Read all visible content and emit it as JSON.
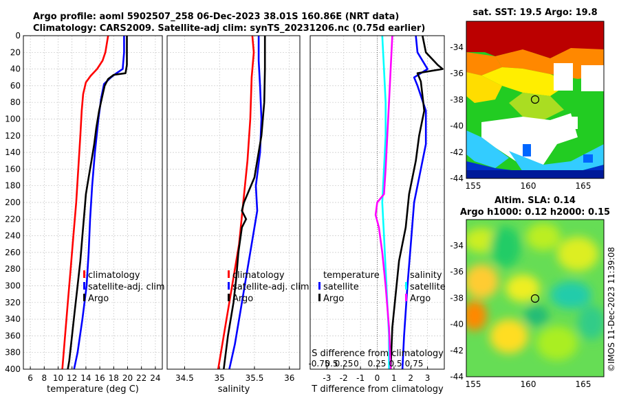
{
  "header": {
    "line1": "Argo profile: aoml 5902507_258 06-Dec-2023 38.01S 160.86E (NRT data)",
    "line2": "Climatology: CARS2009. Satellite-adj clim: synTS_20231206.nc (0.75d earlier)"
  },
  "watermark": "©IMOS 11-Dec-2023 11:39:08",
  "colors": {
    "clim": "#ff0000",
    "sat": "#0000ff",
    "argo": "#000000",
    "sdiff": "#ff00ff",
    "ssat": "#00ffff"
  },
  "chart_data": [
    {
      "type": "line",
      "id": "temperature",
      "xlabel": "temperature (deg C)",
      "ylabel": "",
      "xlim": [
        5,
        25
      ],
      "ylim": [
        400,
        0
      ],
      "xticks": [
        6,
        8,
        10,
        12,
        14,
        16,
        18,
        20,
        22,
        24
      ],
      "yticks": [
        0,
        20,
        40,
        60,
        80,
        100,
        120,
        140,
        160,
        180,
        200,
        220,
        240,
        260,
        280,
        300,
        320,
        340,
        360,
        380,
        400
      ],
      "legend": [
        "climatology",
        "satellite-adj. clim",
        "Argo"
      ],
      "series": [
        {
          "name": "climatology",
          "color": "#ff0000",
          "points": [
            [
              17.2,
              0
            ],
            [
              17.0,
              10
            ],
            [
              16.8,
              20
            ],
            [
              16.4,
              30
            ],
            [
              15.6,
              40
            ],
            [
              14.7,
              48
            ],
            [
              14.0,
              56
            ],
            [
              13.6,
              70
            ],
            [
              13.4,
              90
            ],
            [
              13.2,
              120
            ],
            [
              12.9,
              160
            ],
            [
              12.6,
              200
            ],
            [
              12.2,
              240
            ],
            [
              11.8,
              280
            ],
            [
              11.4,
              320
            ],
            [
              11.0,
              360
            ],
            [
              10.6,
              400
            ]
          ]
        },
        {
          "name": "satellite-adj. clim",
          "color": "#0000ff",
          "points": [
            [
              19.5,
              0
            ],
            [
              19.5,
              20
            ],
            [
              19.3,
              40
            ],
            [
              18.4,
              45
            ],
            [
              17.6,
              50
            ],
            [
              16.6,
              58
            ],
            [
              16.2,
              75
            ],
            [
              15.8,
              100
            ],
            [
              15.3,
              140
            ],
            [
              14.9,
              180
            ],
            [
              14.6,
              220
            ],
            [
              14.4,
              260
            ],
            [
              14.1,
              300
            ],
            [
              13.5,
              340
            ],
            [
              12.8,
              380
            ],
            [
              12.3,
              400
            ]
          ]
        },
        {
          "name": "Argo",
          "color": "#000000",
          "points": [
            [
              19.9,
              0
            ],
            [
              19.9,
              20
            ],
            [
              19.9,
              35
            ],
            [
              19.7,
              45
            ],
            [
              18.0,
              47
            ],
            [
              17.2,
              52
            ],
            [
              16.7,
              60
            ],
            [
              16.3,
              75
            ],
            [
              15.9,
              90
            ],
            [
              15.5,
              110
            ],
            [
              15.2,
              130
            ],
            [
              14.8,
              150
            ],
            [
              14.4,
              170
            ],
            [
              14.0,
              190
            ],
            [
              13.8,
              210
            ],
            [
              13.5,
              240
            ],
            [
              13.2,
              270
            ],
            [
              12.8,
              300
            ],
            [
              12.4,
              330
            ],
            [
              12.0,
              360
            ],
            [
              11.6,
              390
            ],
            [
              11.4,
              400
            ]
          ]
        }
      ]
    },
    {
      "type": "line",
      "id": "salinity",
      "xlabel": "salinity",
      "ylabel": "",
      "xlim": [
        34.25,
        36.15
      ],
      "ylim": [
        400,
        0
      ],
      "xticks": [
        34.5,
        35,
        35.5,
        36
      ],
      "legend": [
        "climatology",
        "satellite-adj. clim",
        "Argo"
      ],
      "series": [
        {
          "name": "climatology",
          "color": "#ff0000",
          "points": [
            [
              35.47,
              0
            ],
            [
              35.49,
              20
            ],
            [
              35.46,
              50
            ],
            [
              35.44,
              100
            ],
            [
              35.4,
              150
            ],
            [
              35.34,
              200
            ],
            [
              35.28,
              250
            ],
            [
              35.18,
              300
            ],
            [
              35.08,
              350
            ],
            [
              34.98,
              400
            ]
          ]
        },
        {
          "name": "satellite-adj. clim",
          "color": "#0000ff",
          "points": [
            [
              35.56,
              0
            ],
            [
              35.56,
              30
            ],
            [
              35.58,
              60
            ],
            [
              35.6,
              100
            ],
            [
              35.58,
              140
            ],
            [
              35.52,
              180
            ],
            [
              35.54,
              210
            ],
            [
              35.48,
              240
            ],
            [
              35.4,
              280
            ],
            [
              35.3,
              330
            ],
            [
              35.22,
              370
            ],
            [
              35.14,
              400
            ]
          ]
        },
        {
          "name": "Argo",
          "color": "#000000",
          "points": [
            [
              35.65,
              0
            ],
            [
              35.65,
              40
            ],
            [
              35.64,
              80
            ],
            [
              35.6,
              120
            ],
            [
              35.54,
              150
            ],
            [
              35.5,
              170
            ],
            [
              35.4,
              190
            ],
            [
              35.35,
              200
            ],
            [
              35.32,
              210
            ],
            [
              35.38,
              220
            ],
            [
              35.32,
              230
            ],
            [
              35.27,
              260
            ],
            [
              35.24,
              290
            ],
            [
              35.2,
              320
            ],
            [
              35.12,
              360
            ],
            [
              35.06,
              400
            ]
          ]
        }
      ]
    },
    {
      "type": "line",
      "id": "differences",
      "xlabel": "T difference from climatology",
      "top_label": "S difference from climatology",
      "top_ticks": [
        "-0.75",
        "0.5",
        "0.25",
        "0",
        "0.25",
        "0.5",
        "0.75"
      ],
      "xlim": [
        -4,
        4
      ],
      "ylim": [
        400,
        0
      ],
      "xticks": [
        -3,
        -2,
        -1,
        0,
        1,
        2,
        3
      ],
      "legend_left_title": "temperature",
      "legend_right_title": "salinity",
      "legend_left": [
        "satellite",
        "Argo"
      ],
      "legend_right": [
        "satellite",
        "Argo"
      ],
      "series": [
        {
          "name": "T satellite",
          "color": "#0000ff",
          "points": [
            [
              2.3,
              0
            ],
            [
              2.4,
              20
            ],
            [
              3.0,
              40
            ],
            [
              2.2,
              50
            ],
            [
              2.4,
              60
            ],
            [
              2.9,
              90
            ],
            [
              2.9,
              130
            ],
            [
              2.6,
              160
            ],
            [
              2.2,
              200
            ],
            [
              2.0,
              250
            ],
            [
              1.8,
              300
            ],
            [
              1.6,
              360
            ],
            [
              1.5,
              400
            ]
          ]
        },
        {
          "name": "T Argo",
          "color": "#000000",
          "points": [
            [
              2.7,
              0
            ],
            [
              2.9,
              20
            ],
            [
              3.6,
              35
            ],
            [
              3.9,
              40
            ],
            [
              2.4,
              45
            ],
            [
              2.6,
              55
            ],
            [
              2.8,
              90
            ],
            [
              2.5,
              120
            ],
            [
              2.3,
              150
            ],
            [
              1.9,
              190
            ],
            [
              1.7,
              230
            ],
            [
              1.3,
              270
            ],
            [
              1.1,
              310
            ],
            [
              0.9,
              350
            ],
            [
              0.8,
              400
            ]
          ]
        },
        {
          "name": "S satellite",
          "color": "#00ffff",
          "points": [
            [
              0.3,
              0
            ],
            [
              0.4,
              40
            ],
            [
              0.5,
              80
            ],
            [
              0.5,
              120
            ],
            [
              0.4,
              160
            ],
            [
              0.3,
              200
            ],
            [
              0.4,
              240
            ],
            [
              0.5,
              280
            ],
            [
              0.6,
              320
            ],
            [
              0.7,
              360
            ],
            [
              0.7,
              400
            ]
          ]
        },
        {
          "name": "S Argo",
          "color": "#ff00ff",
          "points": [
            [
              0.9,
              0
            ],
            [
              0.8,
              40
            ],
            [
              0.7,
              80
            ],
            [
              0.6,
              120
            ],
            [
              0.5,
              160
            ],
            [
              0.4,
              190
            ],
            [
              0.0,
              200
            ],
            [
              -0.1,
              215
            ],
            [
              0.1,
              230
            ],
            [
              0.3,
              260
            ],
            [
              0.5,
              300
            ],
            [
              0.7,
              350
            ],
            [
              0.8,
              400
            ]
          ]
        }
      ]
    }
  ],
  "maps": {
    "sst": {
      "title": "sat. SST: 19.5 Argo: 19.8",
      "xticks": [
        "155",
        "160",
        "165"
      ],
      "yticks": [
        "-34",
        "-36",
        "-38",
        "-40",
        "-42",
        "-44"
      ]
    },
    "sla": {
      "title1": "Altim. SLA: 0.14",
      "title2": "Argo h1000: 0.12 h2000: 0.15",
      "xticks": [
        "155",
        "160",
        "165"
      ],
      "yticks": [
        "-34",
        "-36",
        "-38",
        "-40",
        "-42",
        "-44"
      ]
    }
  }
}
